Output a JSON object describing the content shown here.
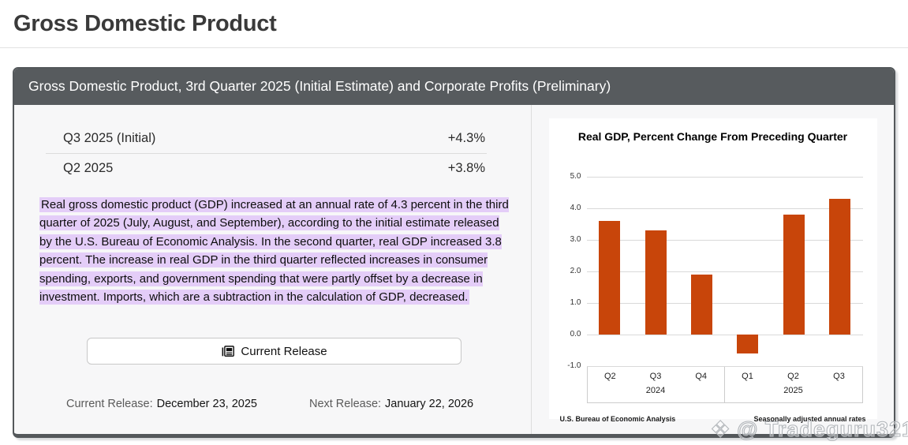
{
  "page": {
    "title": "Gross Domestic Product"
  },
  "card": {
    "header": "Gross Domestic Product, 3rd Quarter 2025 (Initial Estimate) and Corporate Profits (Preliminary)",
    "stats": [
      {
        "label": "Q3 2025 (Initial)",
        "value": "+4.3%"
      },
      {
        "label": "Q2 2025",
        "value": "+3.8%"
      }
    ],
    "summary": "Real gross domestic product (GDP) increased at an annual rate of 4.3 percent in the third quarter of 2025 (July, August, and September), according to the initial estimate released by the U.S. Bureau of Economic Analysis. In the second quarter, real GDP increased 3.8 percent. The increase in real GDP in the third quarter reflected increases in consumer spending, exports, and government spending that were partly offset by a decrease in investment. Imports, which are a subtraction in the calculation of GDP, decreased.",
    "button": {
      "label": "Current Release",
      "icon": "newspaper-icon"
    },
    "releases": {
      "current_label": "Current Release:",
      "current_date": "December 23, 2025",
      "next_label": "Next Release:",
      "next_date": "January 22, 2026"
    }
  },
  "chart_data": {
    "type": "bar",
    "title": "Real GDP, Percent Change From Preceding Quarter",
    "categories": [
      "Q2",
      "Q3",
      "Q4",
      "Q1",
      "Q2",
      "Q3"
    ],
    "values": [
      3.6,
      3.3,
      1.9,
      -0.6,
      3.8,
      4.3
    ],
    "year_groups": [
      {
        "year": "2024",
        "quarters": [
          "Q2",
          "Q3",
          "Q4"
        ]
      },
      {
        "year": "2025",
        "quarters": [
          "Q1",
          "Q2",
          "Q3"
        ]
      }
    ],
    "ylim": [
      -1.0,
      5.0
    ],
    "yticks": [
      5.0,
      4.0,
      3.0,
      2.0,
      1.0,
      0.0,
      -1.0
    ],
    "grid": true,
    "legend": false,
    "bar_color": "#c8450a",
    "footnote_left": "U.S. Bureau of Economic Analysis",
    "footnote_right": "Seasonally adjusted annual rates"
  },
  "watermark": {
    "text": "@ Tradeguru321",
    "icon": "diamond-logo-icon"
  },
  "colors": {
    "accent_orange": "#c8450a",
    "highlight_purple": "#e4cdf8",
    "header_gray": "#575b5e",
    "card_bg": "#f7f7f8"
  }
}
